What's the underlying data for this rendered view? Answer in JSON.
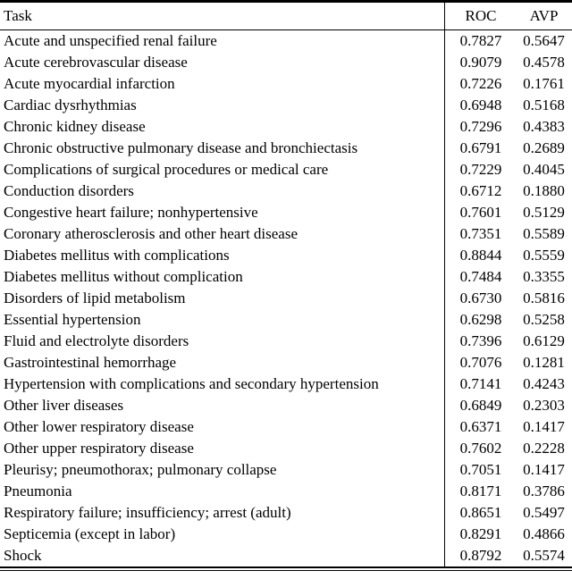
{
  "colors": {
    "background": "#ffffff",
    "text": "#000000",
    "rule": "#000000"
  },
  "table": {
    "columns": {
      "task": "Task",
      "roc": "ROC",
      "avp": "AVP"
    },
    "rows": [
      {
        "task": "Acute and unspecified renal failure",
        "roc": "0.7827",
        "avp": "0.5647"
      },
      {
        "task": "Acute cerebrovascular disease",
        "roc": "0.9079",
        "avp": "0.4578"
      },
      {
        "task": "Acute myocardial infarction",
        "roc": "0.7226",
        "avp": "0.1761"
      },
      {
        "task": "Cardiac dysrhythmias",
        "roc": "0.6948",
        "avp": "0.5168"
      },
      {
        "task": "Chronic kidney disease",
        "roc": "0.7296",
        "avp": "0.4383"
      },
      {
        "task": "Chronic obstructive pulmonary disease and bronchiectasis",
        "roc": "0.6791",
        "avp": "0.2689"
      },
      {
        "task": "Complications of surgical procedures or medical care",
        "roc": "0.7229",
        "avp": "0.4045"
      },
      {
        "task": "Conduction disorders",
        "roc": "0.6712",
        "avp": "0.1880"
      },
      {
        "task": "Congestive heart failure; nonhypertensive",
        "roc": "0.7601",
        "avp": "0.5129"
      },
      {
        "task": "Coronary atherosclerosis and other heart disease",
        "roc": "0.7351",
        "avp": "0.5589"
      },
      {
        "task": "Diabetes mellitus with complications",
        "roc": "0.8844",
        "avp": "0.5559"
      },
      {
        "task": "Diabetes mellitus without complication",
        "roc": "0.7484",
        "avp": "0.3355"
      },
      {
        "task": "Disorders of lipid metabolism",
        "roc": "0.6730",
        "avp": "0.5816"
      },
      {
        "task": "Essential hypertension",
        "roc": "0.6298",
        "avp": "0.5258"
      },
      {
        "task": "Fluid and electrolyte disorders",
        "roc": "0.7396",
        "avp": "0.6129"
      },
      {
        "task": "Gastrointestinal hemorrhage",
        "roc": "0.7076",
        "avp": "0.1281"
      },
      {
        "task": "Hypertension with complications and secondary hypertension",
        "roc": "0.7141",
        "avp": "0.4243"
      },
      {
        "task": "Other liver diseases",
        "roc": "0.6849",
        "avp": "0.2303"
      },
      {
        "task": "Other lower respiratory disease",
        "roc": "0.6371",
        "avp": "0.1417"
      },
      {
        "task": "Other upper respiratory disease",
        "roc": "0.7602",
        "avp": "0.2228"
      },
      {
        "task": "Pleurisy; pneumothorax; pulmonary collapse",
        "roc": "0.7051",
        "avp": "0.1417"
      },
      {
        "task": "Pneumonia",
        "roc": "0.8171",
        "avp": "0.3786"
      },
      {
        "task": "Respiratory failure; insufficiency; arrest (adult)",
        "roc": "0.8651",
        "avp": "0.5497"
      },
      {
        "task": "Septicemia (except in labor)",
        "roc": "0.8291",
        "avp": "0.4866"
      },
      {
        "task": "Shock",
        "roc": "0.8792",
        "avp": "0.5574"
      }
    ]
  }
}
